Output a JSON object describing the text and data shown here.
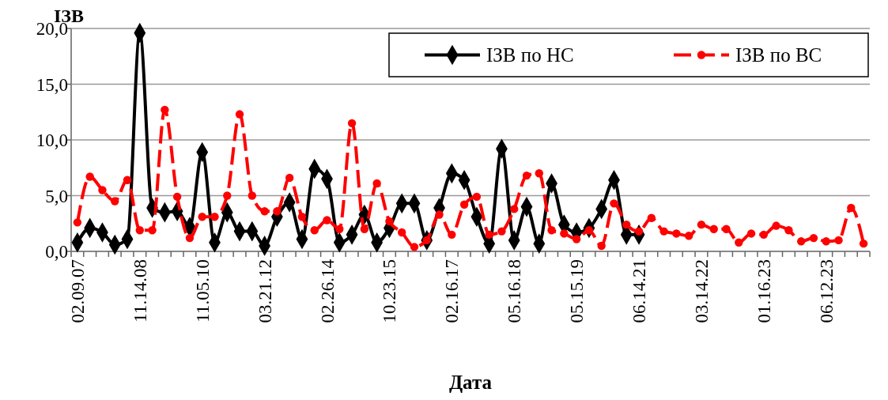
{
  "chart_data": {
    "type": "line",
    "xlabel": "Дата",
    "ylabel": "ІЗВ",
    "categories": [
      "02.09.07",
      null,
      null,
      null,
      null,
      "11.14.08",
      null,
      null,
      null,
      null,
      "11.05.10",
      null,
      null,
      null,
      null,
      "03.21.12",
      null,
      null,
      null,
      null,
      "02.26.14",
      null,
      null,
      null,
      null,
      "10.23.15",
      null,
      null,
      null,
      null,
      "02.16.17",
      null,
      null,
      null,
      null,
      "05.16.18",
      null,
      null,
      null,
      null,
      "05.15.19",
      null,
      null,
      null,
      null,
      "06.14.21",
      null,
      null,
      null,
      null,
      "03.14.22",
      null,
      null,
      null,
      null,
      "01.16.23",
      null,
      null,
      null,
      null,
      "06.12.23",
      null,
      null,
      null
    ],
    "series": [
      {
        "name": "ІЗВ по НС",
        "color": "#000000",
        "marker": "diamond",
        "line_style": "solid",
        "values": [
          0.8,
          2.1,
          1.7,
          0.6,
          1.1,
          19.6,
          3.9,
          3.5,
          3.6,
          2.2,
          8.9,
          0.8,
          3.5,
          1.8,
          1.8,
          0.5,
          3.1,
          4.4,
          1.1,
          7.4,
          6.5,
          0.8,
          1.5,
          3.3,
          0.8,
          2.1,
          4.3,
          4.3,
          1.0,
          3.9,
          7.0,
          6.4,
          3.1,
          0.7,
          9.2,
          1.0,
          4.0,
          0.7,
          6.1,
          2.4,
          1.7,
          2.1,
          3.8,
          6.4,
          1.5,
          1.5,
          null,
          null,
          null,
          null,
          null,
          null,
          null,
          null,
          null,
          null,
          null,
          null,
          null,
          null,
          null,
          null,
          null,
          null
        ]
      },
      {
        "name": "ІЗВ по ВС",
        "color": "#ff0000",
        "marker": "circle",
        "line_style": "dashed",
        "values": [
          2.6,
          6.7,
          5.5,
          4.5,
          6.4,
          1.9,
          1.9,
          12.7,
          4.9,
          1.2,
          3.1,
          3.1,
          5.0,
          12.3,
          5.0,
          3.6,
          3.6,
          6.6,
          3.1,
          1.9,
          2.8,
          2.0,
          11.5,
          2.0,
          6.1,
          2.7,
          1.7,
          0.4,
          1.0,
          3.3,
          1.5,
          4.2,
          4.9,
          1.5,
          1.8,
          3.8,
          6.8,
          7.0,
          1.9,
          1.6,
          1.1,
          1.9,
          0.5,
          4.3,
          2.4,
          1.8,
          3.0,
          1.8,
          1.6,
          1.4,
          2.4,
          2.0,
          2.0,
          0.8,
          1.6,
          1.5,
          2.3,
          1.9,
          0.9,
          1.2,
          0.9,
          1.0,
          3.9,
          0.7
        ]
      }
    ],
    "ylim": [
      0,
      20
    ],
    "yticks": [
      {
        "value": 0,
        "label": "0,0"
      },
      {
        "value": 5,
        "label": "5,0"
      },
      {
        "value": 10,
        "label": "10,0"
      },
      {
        "value": 15,
        "label": "15,0"
      },
      {
        "value": 20,
        "label": "20,0"
      }
    ],
    "grid": "y",
    "legend": "top right"
  }
}
